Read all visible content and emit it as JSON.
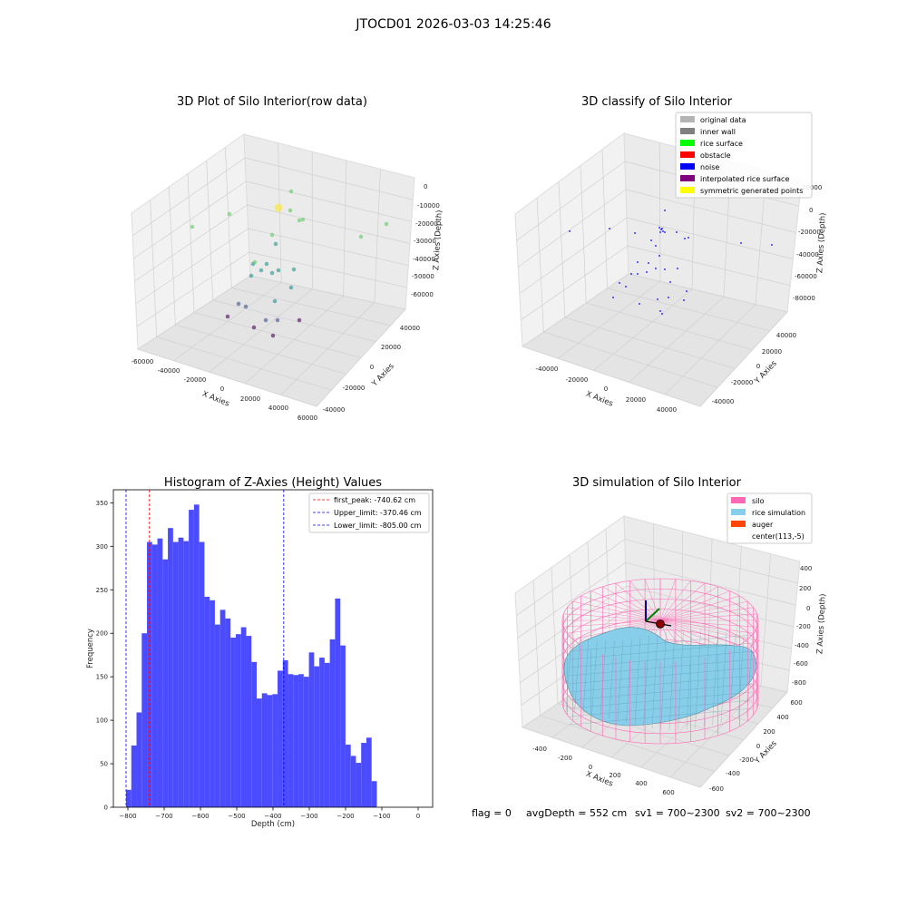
{
  "suptitle": "JTOCD01 2026-03-03 14:25:46",
  "chart_data": [
    {
      "type": "scatter",
      "title": "3D Plot of Silo Interior(row data)",
      "xlabel": "X Axies",
      "ylabel": "Y Axies",
      "zlabel": "Z Axies (Depth)",
      "xticks": [
        "-60000",
        "-40000",
        "-20000",
        "0",
        "20000",
        "40000",
        "60000"
      ],
      "yticks": [
        "-40000",
        "-20000",
        "0",
        "20000",
        "40000"
      ],
      "zticks": [
        "0",
        "-10000",
        "-20000",
        "-30000",
        "-40000",
        "-50000",
        "-60000"
      ],
      "colormap_colors": [
        "#440154",
        "#3b528b",
        "#21918c",
        "#5ec962",
        "#fde725"
      ]
    },
    {
      "type": "scatter",
      "title": "3D classify of Silo Interior",
      "xlabel": "X Axies",
      "ylabel": "Y Axies",
      "zlabel": "Z Axies (Depth)",
      "xticks": [
        "-40000",
        "-20000",
        "0",
        "20000",
        "40000"
      ],
      "yticks": [
        "-40000",
        "-20000",
        "0",
        "20000",
        "40000"
      ],
      "zticks": [
        "20000",
        "0",
        "-20000",
        "-40000",
        "-60000",
        "-80000"
      ],
      "legend_position": "top-right",
      "legend": [
        {
          "label": "original data",
          "color": "#b4b4b4"
        },
        {
          "label": "inner wall",
          "color": "#808080"
        },
        {
          "label": "rice surface",
          "color": "#00ff00"
        },
        {
          "label": "obstacle",
          "color": "#ff0000"
        },
        {
          "label": "noise",
          "color": "#0000ff"
        },
        {
          "label": "interpolated rice surface",
          "color": "#800080"
        },
        {
          "label": "symmetric generated points",
          "color": "#ffff00"
        }
      ]
    },
    {
      "type": "bar",
      "title": "Histogram of Z-Axies (Height) Values",
      "xlabel": "Depth (cm)",
      "ylabel": "Frequency",
      "xlim": [
        -840,
        40
      ],
      "ylim": [
        0,
        365
      ],
      "xticks": [
        -800,
        -700,
        -600,
        -500,
        -400,
        -300,
        -200,
        -100,
        0
      ],
      "yticks": [
        0,
        50,
        100,
        150,
        200,
        250,
        300,
        350
      ],
      "bar_color": "#4b4bff",
      "bin_start": -805,
      "bin_width": 14.4,
      "values": [
        20,
        71,
        109,
        200,
        305,
        302,
        309,
        285,
        321,
        305,
        310,
        306,
        342,
        348,
        305,
        242,
        238,
        210,
        227,
        217,
        195,
        199,
        207,
        197,
        167,
        125,
        131,
        129,
        130,
        157,
        169,
        153,
        152,
        153,
        150,
        178,
        162,
        172,
        166,
        193,
        240,
        186,
        72,
        59,
        51,
        74,
        80,
        30
      ],
      "lines": [
        {
          "label": "first_peak: -740.62 cm",
          "x": -740.62,
          "color": "#ff0000"
        },
        {
          "label": "Upper_limit: -370.46 cm",
          "x": -370.46,
          "color": "#0000ff"
        },
        {
          "label": "Lower_limit: -805.00 cm",
          "x": -805.0,
          "color": "#0000ff"
        }
      ],
      "legend_position": "top-right"
    },
    {
      "type": "surface",
      "title": "3D simulation of Silo Interior",
      "xlabel": "X Axies",
      "ylabel": "Y Axies",
      "zlabel": "Z Axies (Depth)",
      "xticks": [
        "-400",
        "-200",
        "0",
        "200",
        "400",
        "600"
      ],
      "yticks": [
        "-600",
        "-400",
        "-200",
        "0",
        "200",
        "400",
        "600"
      ],
      "zticks": [
        "400",
        "200",
        "0",
        "-200",
        "-400",
        "-600",
        "-800"
      ],
      "legend_position": "top-right",
      "legend": [
        {
          "label": "silo",
          "color": "#ff69b4"
        },
        {
          "label": "rice simulation",
          "color": "#87ceeb"
        },
        {
          "label": "auger",
          "color": "#ff4500"
        },
        {
          "label": "center(113,-5)",
          "color": "#ffffff"
        }
      ]
    }
  ],
  "footer": {
    "flag": "flag = 0",
    "avg_depth": "avgDepth = 552 cm",
    "sv1": "sv1 = 700~2300",
    "sv2": "sv2 = 700~2300"
  }
}
